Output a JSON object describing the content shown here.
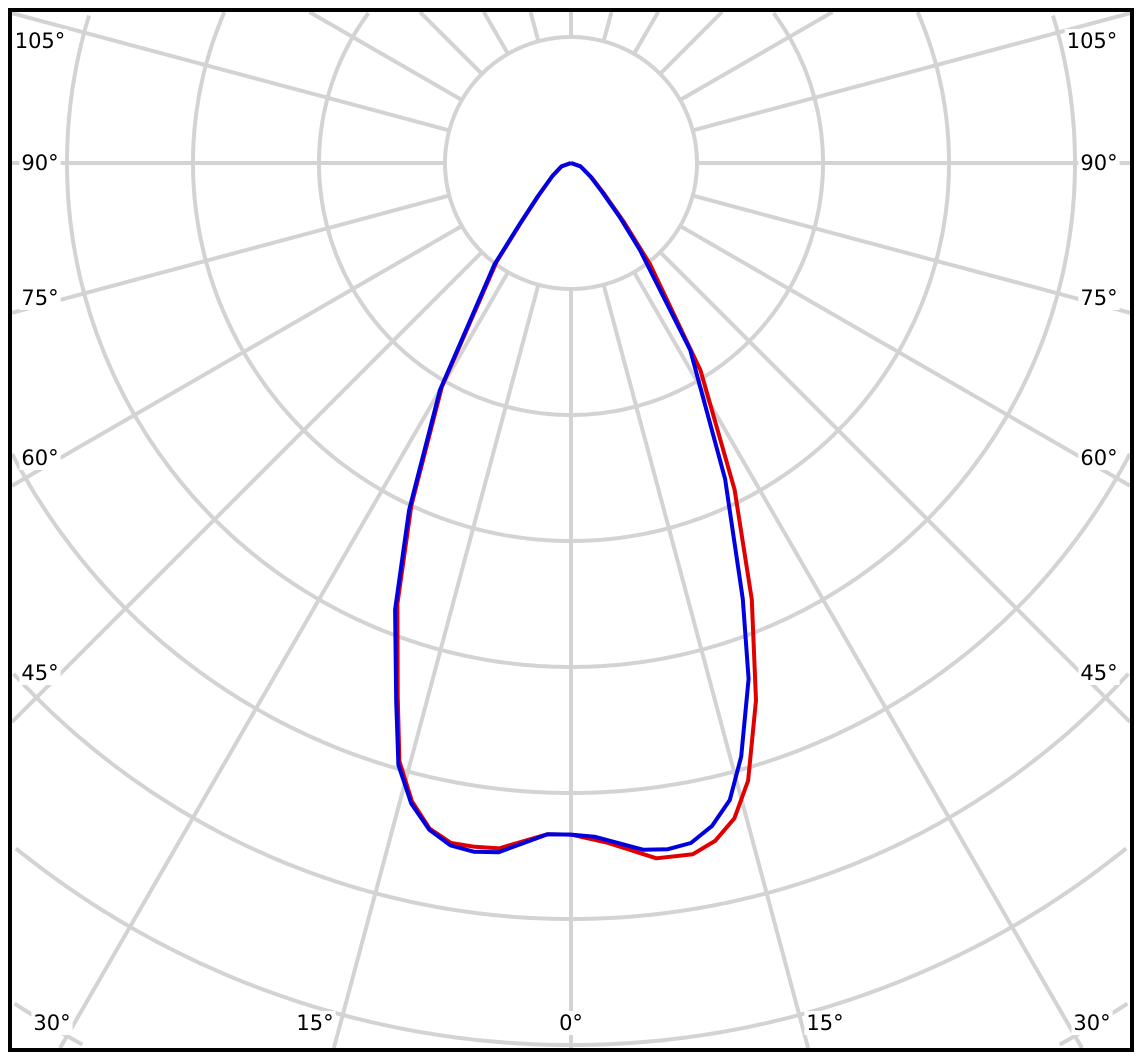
{
  "chart_data": {
    "type": "polar",
    "title": "",
    "angle_unit": "degrees",
    "angle_labels": {
      "bottom": [
        "30°",
        "15°",
        "0°",
        "15°",
        "30°"
      ],
      "left": [
        "105°",
        "90°",
        "75°",
        "60°",
        "45°"
      ],
      "right": [
        "105°",
        "90°",
        "75°",
        "60°",
        "45°"
      ]
    },
    "spoke_step_deg": 15,
    "grid": true,
    "radial_tick_labels": [],
    "radial_unit": "grid rings",
    "colors": {
      "grid": "#d3d3d3",
      "frame": "#000000"
    },
    "series": [
      {
        "color": "#e00000",
        "left": [
          [
            0,
            5.33
          ],
          [
            2,
            5.33
          ],
          [
            6,
            5.47
          ],
          [
            8,
            5.48
          ],
          [
            10,
            5.48
          ],
          [
            12,
            5.4
          ],
          [
            14,
            5.22
          ],
          [
            16,
            4.94
          ],
          [
            18,
            4.45
          ],
          [
            21.5,
            3.76
          ],
          [
            25,
            3.0
          ],
          [
            30,
            2.05
          ],
          [
            37,
            0.98
          ],
          [
            40,
            0.62
          ],
          [
            45,
            0.36
          ],
          [
            55,
            0.18
          ],
          [
            70,
            0.08
          ],
          [
            90,
            0
          ]
        ],
        "right": [
          [
            0,
            5.33
          ],
          [
            3,
            5.4
          ],
          [
            7,
            5.56
          ],
          [
            10,
            5.57
          ],
          [
            12,
            5.5
          ],
          [
            14,
            5.36
          ],
          [
            16,
            5.1
          ],
          [
            19,
            4.51
          ],
          [
            22.5,
            3.75
          ],
          [
            26.6,
            2.9
          ],
          [
            32,
            1.94
          ],
          [
            38,
            1.02
          ],
          [
            42,
            0.62
          ],
          [
            47,
            0.36
          ],
          [
            55,
            0.2
          ],
          [
            70,
            0.08
          ],
          [
            90,
            0
          ]
        ]
      },
      {
        "color": "#0000e0",
        "left": [
          [
            0,
            5.33
          ],
          [
            2,
            5.33
          ],
          [
            6,
            5.5
          ],
          [
            8,
            5.52
          ],
          [
            10,
            5.5
          ],
          [
            12,
            5.41
          ],
          [
            14,
            5.24
          ],
          [
            16,
            4.97
          ],
          [
            18,
            4.49
          ],
          [
            21.5,
            3.81
          ],
          [
            25,
            3.04
          ],
          [
            30,
            2.08
          ],
          [
            37,
            1.01
          ],
          [
            40,
            0.64
          ],
          [
            45,
            0.37
          ],
          [
            55,
            0.18
          ],
          [
            70,
            0.08
          ],
          [
            90,
            0
          ]
        ],
        "right": [
          [
            0,
            5.33
          ],
          [
            2,
            5.35
          ],
          [
            6,
            5.48
          ],
          [
            8,
            5.5
          ],
          [
            10,
            5.48
          ],
          [
            12,
            5.38
          ],
          [
            14,
            5.21
          ],
          [
            16,
            4.9
          ],
          [
            19,
            4.33
          ],
          [
            21.5,
            3.72
          ],
          [
            26,
            2.79
          ],
          [
            32.5,
            1.76
          ],
          [
            38.4,
            0.88
          ],
          [
            42,
            0.58
          ],
          [
            47,
            0.34
          ],
          [
            55,
            0.19
          ],
          [
            70,
            0.08
          ],
          [
            90,
            0
          ]
        ]
      }
    ]
  }
}
